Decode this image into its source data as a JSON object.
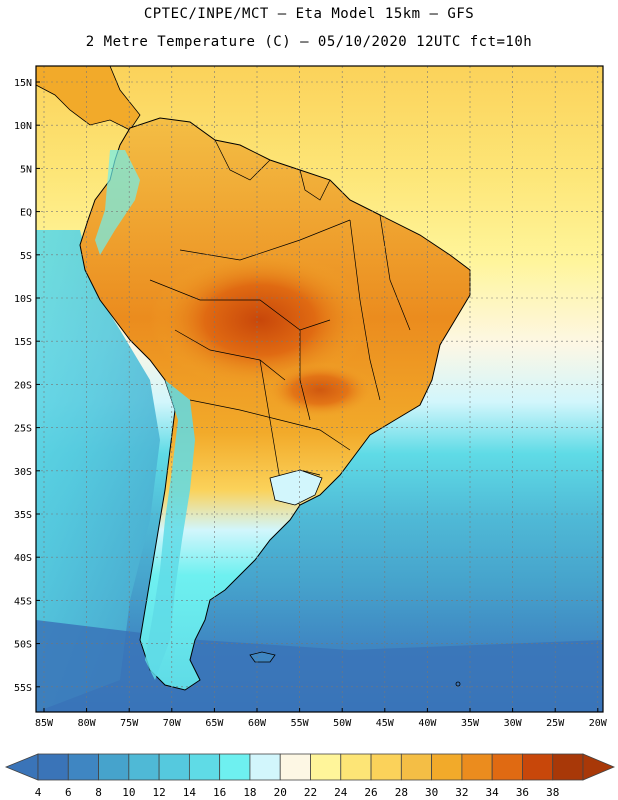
{
  "header": {
    "line1": "CPTEC/INPE/MCT –  Eta Model 15km – GFS",
    "line2": "2 Metre Temperature (C) – 05/10/2020 12UTC fct=10h"
  },
  "map": {
    "lat_labels": [
      "15N",
      "10N",
      "5N",
      "EQ",
      "5S",
      "10S",
      "15S",
      "20S",
      "25S",
      "30S",
      "35S",
      "40S",
      "45S",
      "50S",
      "55S"
    ],
    "lon_labels": [
      "85W",
      "80W",
      "75W",
      "70W",
      "65W",
      "60W",
      "55W",
      "50W",
      "45W",
      "40W",
      "35W",
      "30W",
      "25W",
      "20W"
    ]
  },
  "colorbar": {
    "labels": [
      "4",
      "6",
      "8",
      "10",
      "12",
      "14",
      "16",
      "18",
      "20",
      "22",
      "24",
      "26",
      "28",
      "30",
      "32",
      "34",
      "36",
      "38"
    ],
    "colors": [
      "#3a74b8",
      "#3f86c2",
      "#46a3cc",
      "#4fb9d6",
      "#55c9de",
      "#5fdbe6",
      "#6ef0f0",
      "#d2f6fc",
      "#fdf7e4",
      "#fff59a",
      "#fde576",
      "#fbd25a",
      "#f4be45",
      "#f2aa2a",
      "#eb8c1e",
      "#e06a12",
      "#c8470a",
      "#a83808"
    ]
  }
}
